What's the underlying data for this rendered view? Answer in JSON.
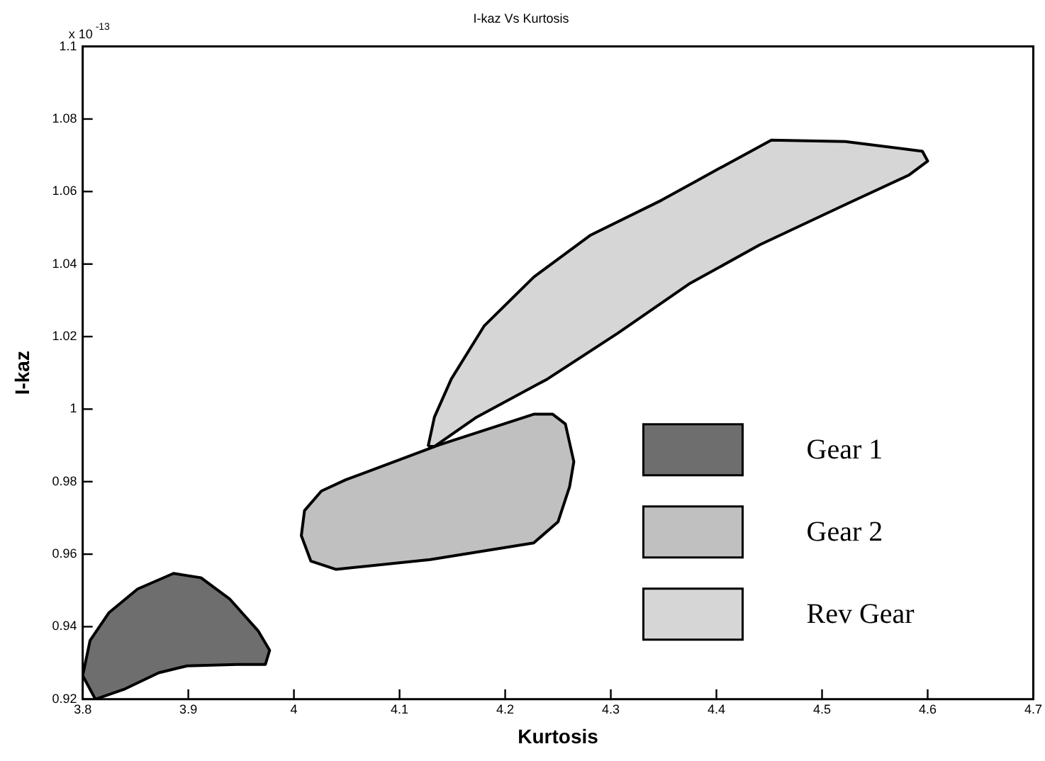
{
  "chart_data": {
    "type": "area",
    "title": "I-kaz Vs Kurtosis",
    "xlabel": "Kurtosis",
    "ylabel": "I-kaz",
    "annotations": [
      "x 10$^{-13}$"
    ],
    "xlim": [
      3.8,
      4.7
    ],
    "xticks": [
      3.8,
      3.9,
      4,
      4.1,
      4.2,
      4.3,
      4.4,
      4.5,
      4.6,
      4.7
    ],
    "ylim": [
      0.92,
      1.1
    ],
    "yticks": [
      0.92,
      0.94,
      0.96,
      0.98,
      1,
      1.02,
      1.04,
      1.06,
      1.08,
      1.1
    ],
    "grid": false,
    "legend": "bottom right",
    "marker": "none",
    "line_style": "solid",
    "series": [
      {
        "name": "Gear 1",
        "color": "#6e6e6e",
        "x": [
          3.812,
          3.8,
          3.807,
          3.825,
          3.852,
          3.886,
          3.912,
          3.939,
          3.966,
          3.977,
          3.973,
          3.946,
          3.899,
          3.872,
          3.839,
          3.812
        ],
        "values": [
          0.92,
          0.9265,
          0.9362,
          0.9439,
          0.9504,
          0.9547,
          0.9535,
          0.9477,
          0.9389,
          0.9335,
          0.9296,
          0.9296,
          0.9292,
          0.9273,
          0.9227,
          0.92
        ]
      },
      {
        "name": "Gear 2",
        "color": "#c0c0c0",
        "x": [
          4.049,
          4.026,
          4.01,
          4.007,
          4.016,
          4.04,
          4.129,
          4.227,
          4.25,
          4.261,
          4.265,
          4.257,
          4.245,
          4.227,
          4.137,
          4.049
        ],
        "values": [
          0.9805,
          0.9774,
          0.972,
          0.9651,
          0.9581,
          0.9558,
          0.9585,
          0.9631,
          0.9689,
          0.9786,
          0.9855,
          0.9959,
          0.9986,
          0.9986,
          0.9901,
          0.9805
        ]
      },
      {
        "name": "Rev Gear",
        "color": "#d6d6d6",
        "x": [
          4.127,
          4.133,
          4.149,
          4.18,
          4.227,
          4.281,
          4.348,
          4.401,
          4.452,
          4.522,
          4.595,
          4.6,
          4.582,
          4.522,
          4.441,
          4.374,
          4.307,
          4.24,
          4.173,
          4.133,
          4.127
        ],
        "values": [
          0.9897,
          0.9978,
          1.0083,
          1.0229,
          1.0364,
          1.048,
          1.0576,
          1.0661,
          1.0742,
          1.0738,
          1.0711,
          1.0684,
          1.0645,
          1.0564,
          1.0453,
          1.0345,
          1.021,
          1.0083,
          0.9978,
          0.9897,
          0.9897
        ]
      }
    ]
  }
}
